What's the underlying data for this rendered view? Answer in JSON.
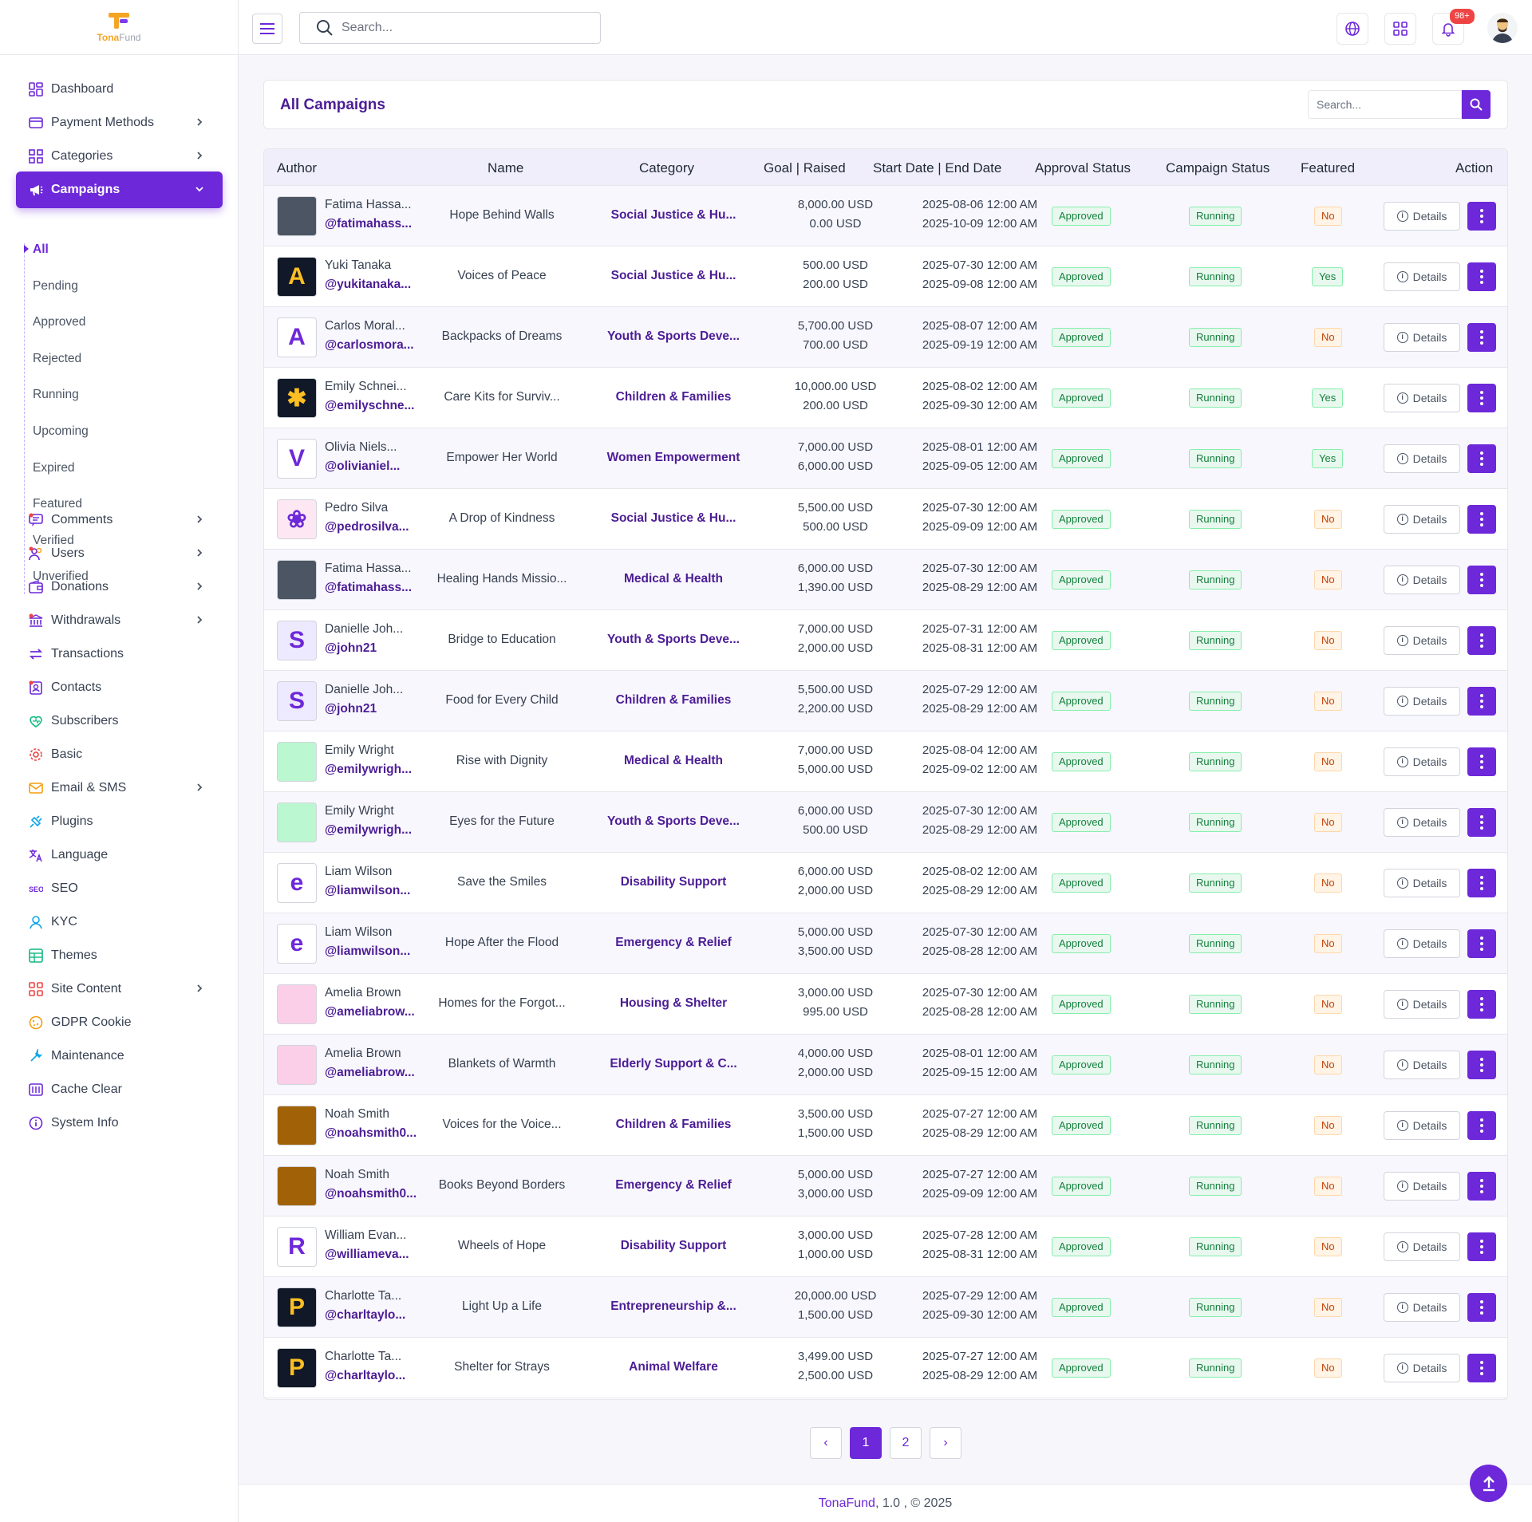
{
  "brand": {
    "name_a": "Tona",
    "name_b": "Fund"
  },
  "search": {
    "placeholder": "Search..."
  },
  "topbar": {
    "notif_count": "98+"
  },
  "sidebar": {
    "items": [
      {
        "label": "Dashboard",
        "icon": "dashboard-icon",
        "chev": false
      },
      {
        "label": "Payment Methods",
        "icon": "credit-card-icon",
        "chev": true
      },
      {
        "label": "Categories",
        "icon": "grid-icon",
        "chev": true
      },
      {
        "label": "Campaigns",
        "icon": "megaphone-icon",
        "chev": true,
        "active": true
      },
      {
        "label": "Comments",
        "icon": "comment-icon",
        "chev": true
      },
      {
        "label": "Users",
        "icon": "users-icon",
        "chev": true
      },
      {
        "label": "Donations",
        "icon": "wallet-icon",
        "chev": true
      },
      {
        "label": "Withdrawals",
        "icon": "bank-icon",
        "chev": true
      },
      {
        "label": "Transactions",
        "icon": "arrows-icon",
        "chev": false
      },
      {
        "label": "Contacts",
        "icon": "contacts-icon",
        "chev": false
      },
      {
        "label": "Subscribers",
        "icon": "heart-icon",
        "chev": false
      },
      {
        "label": "Basic",
        "icon": "gear-icon",
        "chev": false
      },
      {
        "label": "Email & SMS",
        "icon": "envelope-icon",
        "chev": true
      },
      {
        "label": "Plugins",
        "icon": "plug-icon",
        "chev": false
      },
      {
        "label": "Language",
        "icon": "translate-icon",
        "chev": false
      },
      {
        "label": "SEO",
        "icon": "seo-icon",
        "chev": false
      },
      {
        "label": "KYC",
        "icon": "person-icon",
        "chev": false
      },
      {
        "label": "Themes",
        "icon": "layout-icon",
        "chev": false
      },
      {
        "label": "Site Content",
        "icon": "apps-icon",
        "chev": true
      },
      {
        "label": "GDPR Cookie",
        "icon": "cookie-icon",
        "chev": false
      },
      {
        "label": "Maintenance",
        "icon": "wrench-icon",
        "chev": false
      },
      {
        "label": "Cache Clear",
        "icon": "cache-icon",
        "chev": false
      },
      {
        "label": "System Info",
        "icon": "info-icon",
        "chev": false
      }
    ],
    "sub_items": [
      "All",
      "Pending",
      "Approved",
      "Rejected",
      "Running",
      "Upcoming",
      "Expired",
      "Featured",
      "Verified",
      "Unverified"
    ]
  },
  "page": {
    "title": "All Campaigns",
    "search_placeholder": "Search..."
  },
  "table": {
    "headers": [
      "Author",
      "Name",
      "Category",
      "Goal | Raised",
      "Start Date | End Date",
      "Approval Status",
      "Campaign Status",
      "Featured",
      "Action"
    ],
    "details_label": "Details",
    "rows": [
      {
        "author": "Fatima Hassa...",
        "username": "@fatimahass...",
        "name": "Hope Behind Walls",
        "category": "Social Justice & Hu...",
        "goal": "8,000.00 USD",
        "raised": "0.00 USD",
        "start": "2025-08-06 12:00 AM",
        "end": "2025-10-09 12:00 AM",
        "approval": "Approved",
        "status": "Running",
        "featured": "No",
        "avatar_color": "#4b5563",
        "avatar_letter": ""
      },
      {
        "author": "Yuki Tanaka",
        "username": "@yukitanaka...",
        "name": "Voices of Peace",
        "category": "Social Justice & Hu...",
        "goal": "500.00 USD",
        "raised": "200.00 USD",
        "start": "2025-07-30 12:00 AM",
        "end": "2025-09-08 12:00 AM",
        "approval": "Approved",
        "status": "Running",
        "featured": "Yes",
        "avatar_color": "#111827",
        "avatar_letter": "A"
      },
      {
        "author": "Carlos Moral...",
        "username": "@carlosmora...",
        "name": "Backpacks of Dreams",
        "category": "Youth & Sports Deve...",
        "goal": "5,700.00 USD",
        "raised": "700.00 USD",
        "start": "2025-08-07 12:00 AM",
        "end": "2025-09-19 12:00 AM",
        "approval": "Approved",
        "status": "Running",
        "featured": "No",
        "avatar_color": "#ffffff",
        "avatar_letter": "A"
      },
      {
        "author": "Emily Schnei...",
        "username": "@emilyschne...",
        "name": "Care Kits for Surviv...",
        "category": "Children & Families",
        "goal": "10,000.00 USD",
        "raised": "200.00 USD",
        "start": "2025-08-02 12:00 AM",
        "end": "2025-09-30 12:00 AM",
        "approval": "Approved",
        "status": "Running",
        "featured": "Yes",
        "avatar_color": "#111827",
        "avatar_letter": "✱"
      },
      {
        "author": "Olivia Niels...",
        "username": "@olivianiel...",
        "name": "Empower Her World",
        "category": "Women Empowerment",
        "goal": "7,000.00 USD",
        "raised": "6,000.00 USD",
        "start": "2025-08-01 12:00 AM",
        "end": "2025-09-05 12:00 AM",
        "approval": "Approved",
        "status": "Running",
        "featured": "Yes",
        "avatar_color": "#ffffff",
        "avatar_letter": "V"
      },
      {
        "author": "Pedro Silva",
        "username": "@pedrosilva...",
        "name": "A Drop of Kindness",
        "category": "Social Justice & Hu...",
        "goal": "5,500.00 USD",
        "raised": "500.00 USD",
        "start": "2025-07-30 12:00 AM",
        "end": "2025-09-09 12:00 AM",
        "approval": "Approved",
        "status": "Running",
        "featured": "No",
        "avatar_color": "#fce7f3",
        "avatar_letter": "❀"
      },
      {
        "author": "Fatima Hassa...",
        "username": "@fatimahass...",
        "name": "Healing Hands Missio...",
        "category": "Medical & Health",
        "goal": "6,000.00 USD",
        "raised": "1,390.00 USD",
        "start": "2025-07-30 12:00 AM",
        "end": "2025-08-29 12:00 AM",
        "approval": "Approved",
        "status": "Running",
        "featured": "No",
        "avatar_color": "#4b5563",
        "avatar_letter": ""
      },
      {
        "author": "Danielle Joh...",
        "username": "@john21",
        "name": "Bridge to Education",
        "category": "Youth & Sports Deve...",
        "goal": "7,000.00 USD",
        "raised": "2,000.00 USD",
        "start": "2025-07-31 12:00 AM",
        "end": "2025-08-31 12:00 AM",
        "approval": "Approved",
        "status": "Running",
        "featured": "No",
        "avatar_color": "#ede9fe",
        "avatar_letter": "S"
      },
      {
        "author": "Danielle Joh...",
        "username": "@john21",
        "name": "Food for Every Child",
        "category": "Children & Families",
        "goal": "5,500.00 USD",
        "raised": "2,200.00 USD",
        "start": "2025-07-29 12:00 AM",
        "end": "2025-08-29 12:00 AM",
        "approval": "Approved",
        "status": "Running",
        "featured": "No",
        "avatar_color": "#ede9fe",
        "avatar_letter": "S"
      },
      {
        "author": "Emily Wright",
        "username": "@emilywrigh...",
        "name": "Rise with Dignity",
        "category": "Medical & Health",
        "goal": "7,000.00 USD",
        "raised": "5,000.00 USD",
        "start": "2025-08-04 12:00 AM",
        "end": "2025-09-02 12:00 AM",
        "approval": "Approved",
        "status": "Running",
        "featured": "No",
        "avatar_color": "#bbf7d0",
        "avatar_letter": ""
      },
      {
        "author": "Emily Wright",
        "username": "@emilywrigh...",
        "name": "Eyes for the Future",
        "category": "Youth & Sports Deve...",
        "goal": "6,000.00 USD",
        "raised": "500.00 USD",
        "start": "2025-07-30 12:00 AM",
        "end": "2025-08-29 12:00 AM",
        "approval": "Approved",
        "status": "Running",
        "featured": "No",
        "avatar_color": "#bbf7d0",
        "avatar_letter": ""
      },
      {
        "author": "Liam Wilson",
        "username": "@liamwilson...",
        "name": "Save the Smiles",
        "category": "Disability Support",
        "goal": "6,000.00 USD",
        "raised": "2,000.00 USD",
        "start": "2025-08-02 12:00 AM",
        "end": "2025-08-29 12:00 AM",
        "approval": "Approved",
        "status": "Running",
        "featured": "No",
        "avatar_color": "#ffffff",
        "avatar_letter": "e"
      },
      {
        "author": "Liam Wilson",
        "username": "@liamwilson...",
        "name": "Hope After the Flood",
        "category": "Emergency & Relief",
        "goal": "5,000.00 USD",
        "raised": "3,500.00 USD",
        "start": "2025-07-30 12:00 AM",
        "end": "2025-08-28 12:00 AM",
        "approval": "Approved",
        "status": "Running",
        "featured": "No",
        "avatar_color": "#ffffff",
        "avatar_letter": "e"
      },
      {
        "author": "Amelia Brown",
        "username": "@ameliabrow...",
        "name": "Homes for the Forgot...",
        "category": "Housing & Shelter",
        "goal": "3,000.00 USD",
        "raised": "995.00 USD",
        "start": "2025-07-30 12:00 AM",
        "end": "2025-08-28 12:00 AM",
        "approval": "Approved",
        "status": "Running",
        "featured": "No",
        "avatar_color": "#fbcfe8",
        "avatar_letter": ""
      },
      {
        "author": "Amelia Brown",
        "username": "@ameliabrow...",
        "name": "Blankets of Warmth",
        "category": "Elderly Support & C...",
        "goal": "4,000.00 USD",
        "raised": "2,000.00 USD",
        "start": "2025-08-01 12:00 AM",
        "end": "2025-09-15 12:00 AM",
        "approval": "Approved",
        "status": "Running",
        "featured": "No",
        "avatar_color": "#fbcfe8",
        "avatar_letter": ""
      },
      {
        "author": "Noah Smith",
        "username": "@noahsmith0...",
        "name": "Voices for the Voice...",
        "category": "Children & Families",
        "goal": "3,500.00 USD",
        "raised": "1,500.00 USD",
        "start": "2025-07-27 12:00 AM",
        "end": "2025-08-29 12:00 AM",
        "approval": "Approved",
        "status": "Running",
        "featured": "No",
        "avatar_color": "#a16207",
        "avatar_letter": ""
      },
      {
        "author": "Noah Smith",
        "username": "@noahsmith0...",
        "name": "Books Beyond Borders",
        "category": "Emergency & Relief",
        "goal": "5,000.00 USD",
        "raised": "3,000.00 USD",
        "start": "2025-07-27 12:00 AM",
        "end": "2025-09-09 12:00 AM",
        "approval": "Approved",
        "status": "Running",
        "featured": "No",
        "avatar_color": "#a16207",
        "avatar_letter": ""
      },
      {
        "author": "William Evan...",
        "username": "@williameva...",
        "name": "Wheels of Hope",
        "category": "Disability Support",
        "goal": "3,000.00 USD",
        "raised": "1,000.00 USD",
        "start": "2025-07-28 12:00 AM",
        "end": "2025-08-31 12:00 AM",
        "approval": "Approved",
        "status": "Running",
        "featured": "No",
        "avatar_color": "#ffffff",
        "avatar_letter": "R"
      },
      {
        "author": "Charlotte Ta...",
        "username": "@charltaylo...",
        "name": "Light Up a Life",
        "category": "Entrepreneurship &...",
        "goal": "20,000.00 USD",
        "raised": "1,500.00 USD",
        "start": "2025-07-29 12:00 AM",
        "end": "2025-09-30 12:00 AM",
        "approval": "Approved",
        "status": "Running",
        "featured": "No",
        "avatar_color": "#111827",
        "avatar_letter": "P"
      },
      {
        "author": "Charlotte Ta...",
        "username": "@charltaylo...",
        "name": "Shelter for Strays",
        "category": "Animal Welfare",
        "goal": "3,499.00 USD",
        "raised": "2,500.00 USD",
        "start": "2025-07-27 12:00 AM",
        "end": "2025-08-29 12:00 AM",
        "approval": "Approved",
        "status": "Running",
        "featured": "No",
        "avatar_color": "#111827",
        "avatar_letter": "P"
      }
    ]
  },
  "pagination": {
    "prev": "‹",
    "pages": [
      "1",
      "2"
    ],
    "next": "›",
    "current": "1"
  },
  "footer": {
    "brand": "TonaFund",
    "rest": " , 1.0 , © 2025"
  },
  "colors": {
    "accent": "#6d28d9",
    "approved": "#15803d",
    "no_badge": "#c2410c"
  }
}
